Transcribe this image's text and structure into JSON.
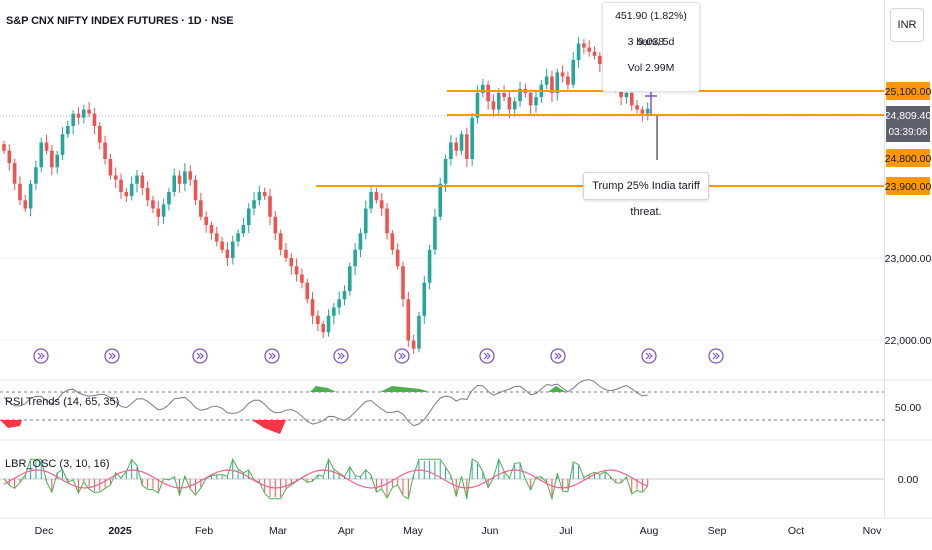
{
  "symbol_title": "S&P CNX NIFTY INDEX FUTURES · 1D · NSE",
  "currency_button": "INR",
  "info_box": {
    "line1": "451.90 (1.82%) 9,038",
    "line2": "3 bars, 5d",
    "line3": "Vol 2.99M"
  },
  "annotation": "Trump 25% India tariff threat.",
  "rsi_label": "RSI Trends (14, 65, 35)",
  "lbr_label": "LBR_OSC (3, 10, 16)",
  "price_labels": {
    "level1": "25,100.00",
    "last": "24,809.40",
    "countdown": "03:39:06",
    "level2": "24,800.00",
    "level3": "23,900.00",
    "p23000": "23,000.00",
    "p22000": "22,000.00",
    "rsi50": "50.00",
    "osc0": "0.00"
  },
  "colors": {
    "up": "#26a69a",
    "down": "#ef5350",
    "level": "#ff9800",
    "marker": "#7e57c2",
    "rsi": "#787b86",
    "rsi_up": "#4caf50",
    "rsi_down": "#f23645"
  },
  "chart_data": {
    "type": "candlestick",
    "x_axis_labels": [
      "Dec",
      "2025",
      "Feb",
      "Mar",
      "Apr",
      "May",
      "Jun",
      "Jul",
      "Aug",
      "Sep",
      "Oct",
      "Nov"
    ],
    "y_axis_ticks": [
      23000,
      22000
    ],
    "horizontal_levels": [
      25100,
      24800,
      23900
    ],
    "last_price": 24809.4,
    "approx_closes": [
      24300,
      24150,
      23900,
      23700,
      23600,
      23900,
      24100,
      24400,
      24300,
      24100,
      24250,
      24500,
      24600,
      24750,
      24700,
      24800,
      24750,
      24600,
      24400,
      24200,
      24000,
      23950,
      23800,
      23750,
      23900,
      24000,
      23850,
      23700,
      23600,
      23500,
      23650,
      23800,
      24000,
      23900,
      24050,
      23950,
      23700,
      23500,
      23400,
      23300,
      23200,
      23100,
      23000,
      23200,
      23300,
      23400,
      23600,
      23700,
      23800,
      23750,
      23500,
      23300,
      23100,
      23000,
      22900,
      22800,
      22700,
      22500,
      22300,
      22200,
      22100,
      22300,
      22400,
      22500,
      22600,
      22900,
      23100,
      23300,
      23600,
      23800,
      23700,
      23600,
      23300,
      23100,
      22900,
      22500,
      22000,
      21900,
      22300,
      22700,
      23100,
      23500,
      23900,
      24200,
      24400,
      24300,
      24500,
      24200,
      24700,
      25000,
      25100,
      24900,
      24800,
      25000,
      24950,
      24800,
      24900,
      25050,
      25000,
      24850,
      24950,
      25100,
      25200,
      25000,
      25250,
      25200,
      25100,
      25400,
      25600,
      25550,
      25500,
      25450,
      25350,
      25300,
      25200,
      25050,
      24950,
      25000,
      24850,
      24800,
      24750,
      24809
    ]
  }
}
